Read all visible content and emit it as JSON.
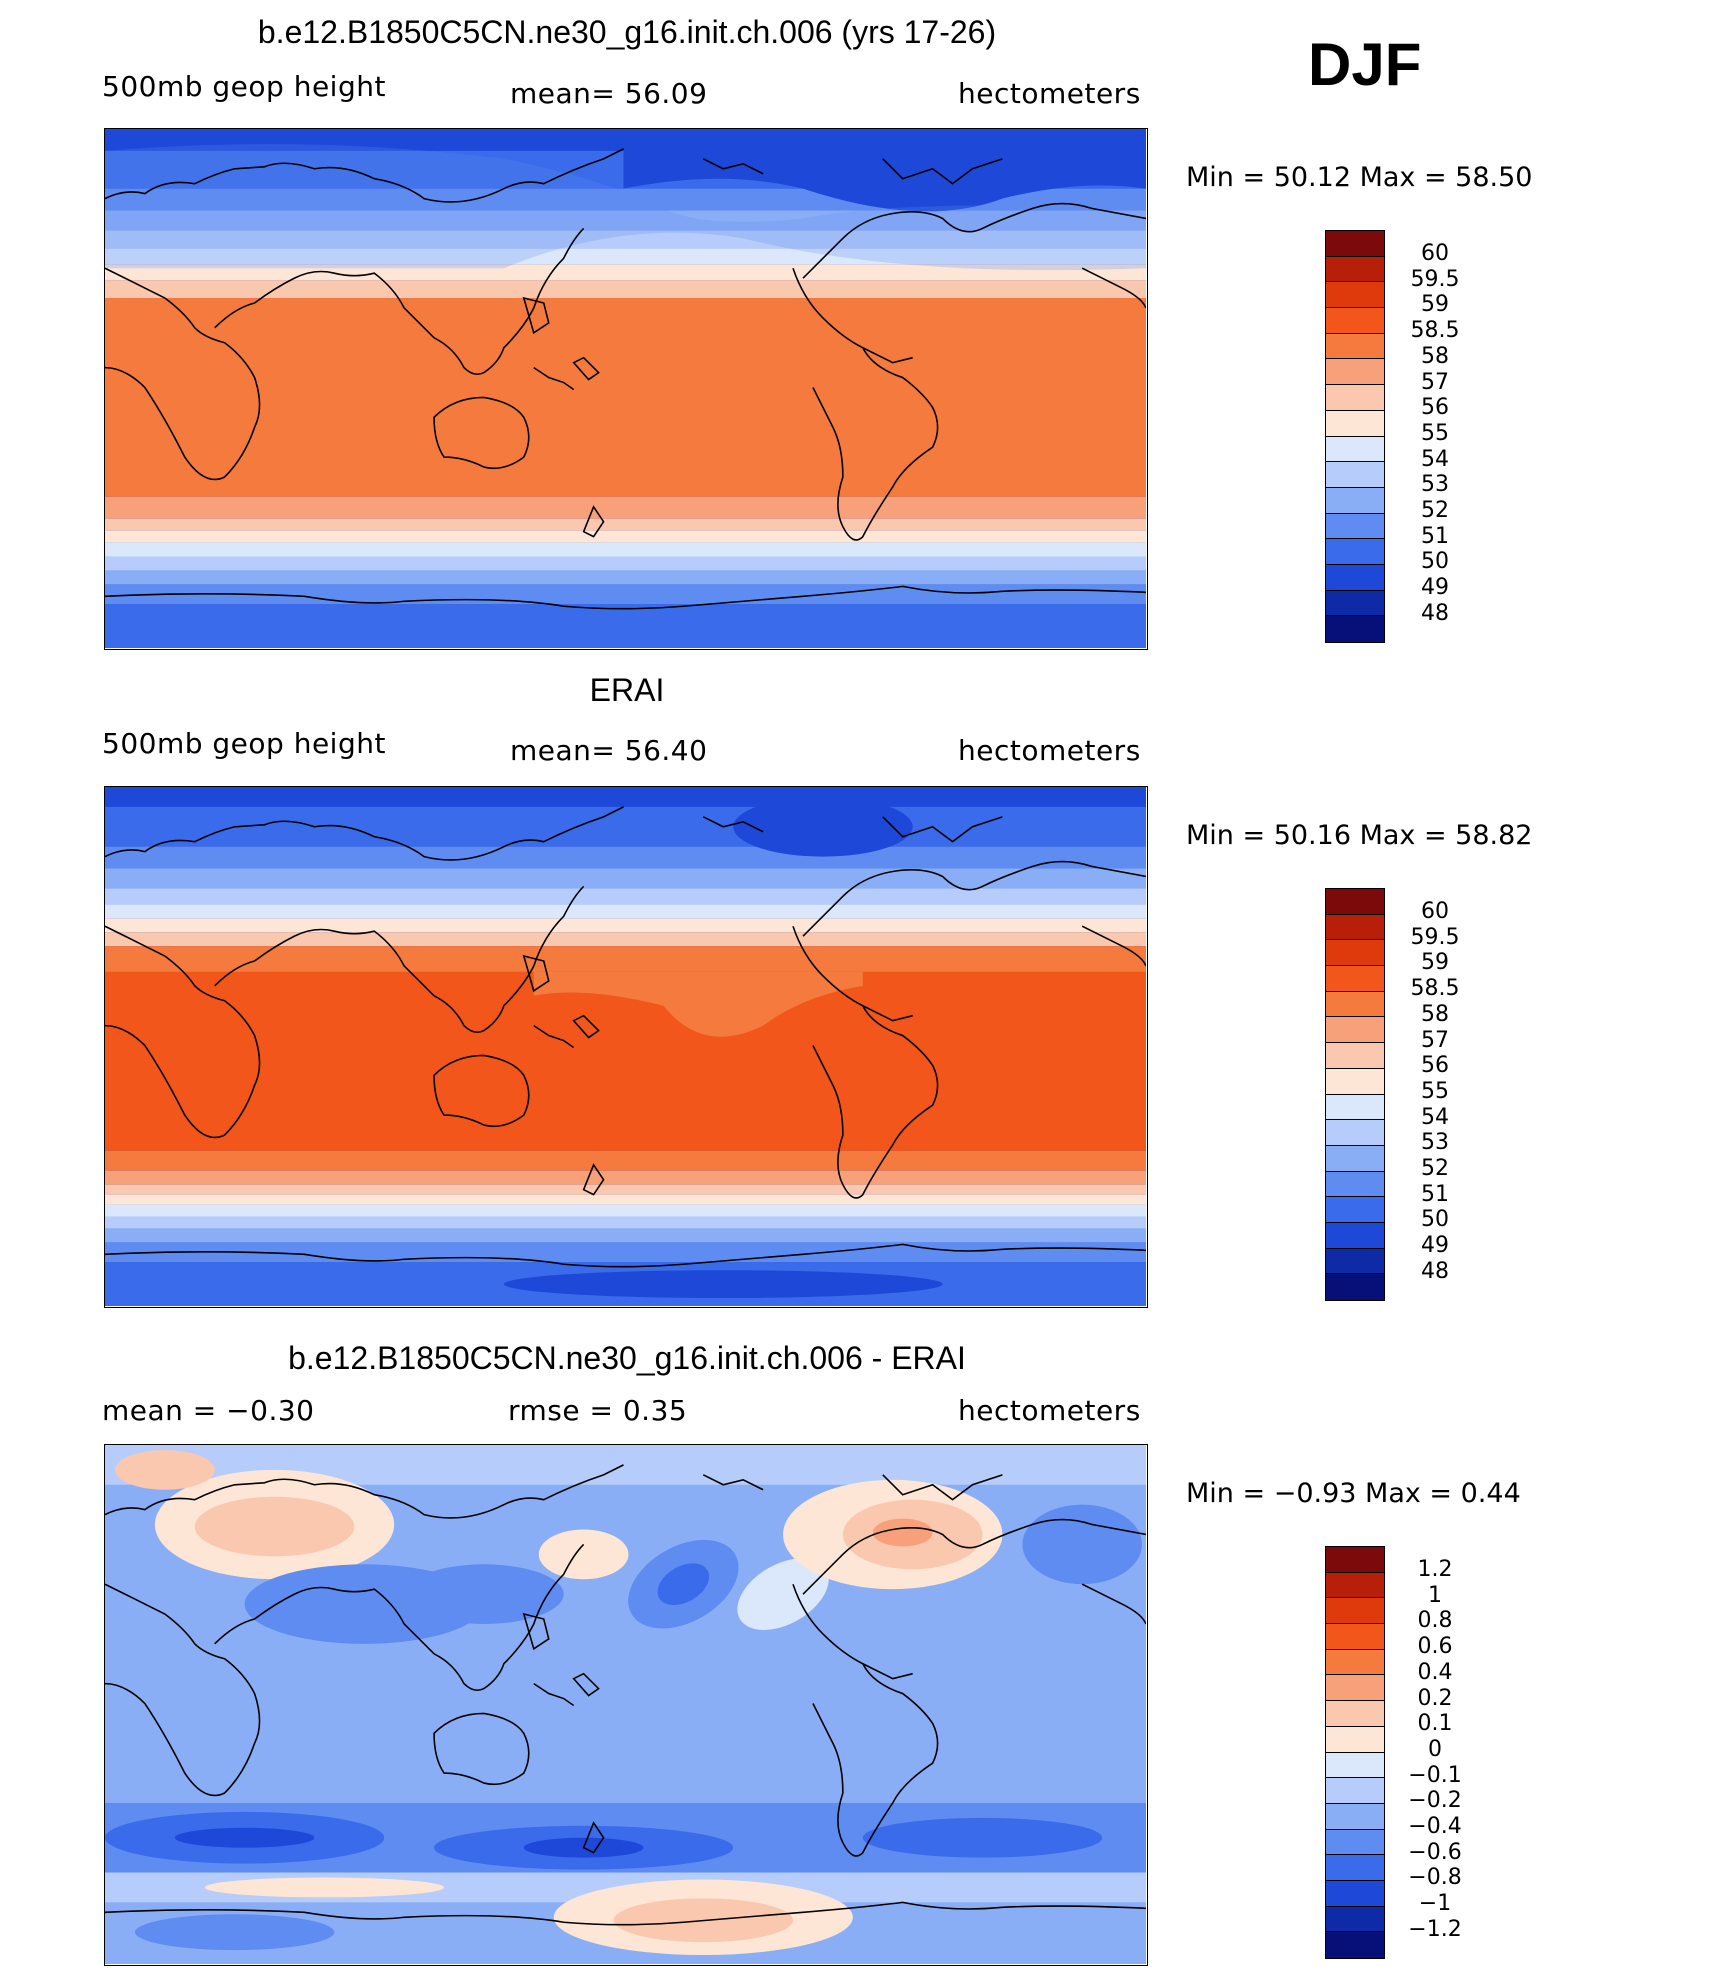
{
  "season": "DJF",
  "panels": [
    {
      "title": "b.e12.B1850C5CN.ne30_g16.init.ch.006 (yrs 17-26)",
      "left_label": "500mb  geop  height",
      "center_label": "mean=   56.09",
      "right_label": "hectometers",
      "minmax": "Min  =    50.12  Max  =    58.50",
      "field": "model"
    },
    {
      "title": "ERAI",
      "left_label": "500mb  geop  height",
      "center_label": "mean=   56.40",
      "right_label": "hectometers",
      "minmax": "Min  =    50.16  Max  =    58.82",
      "field": "obs"
    },
    {
      "title": "b.e12.B1850C5CN.ne30_g16.init.ch.006 - ERAI",
      "left_label": "mean  =    −0.30",
      "center_label": "rmse  =     0.35",
      "right_label": "hectometers",
      "minmax": "Min  =   −0.93  Max  =     0.44",
      "field": "diff"
    }
  ],
  "colorbars": {
    "height": {
      "labels": [
        "60",
        "59.5",
        "59",
        "58.5",
        "58",
        "57",
        "56",
        "55",
        "54",
        "53",
        "52",
        "51",
        "50",
        "49",
        "48"
      ],
      "colors": [
        "#7d0a0a",
        "#b81f08",
        "#de3a0b",
        "#f2561a",
        "#f57a3e",
        "#f7a07a",
        "#fac8ae",
        "#fde6d6",
        "#dbe8fc",
        "#b6ccfa",
        "#8aaef6",
        "#5f8cf1",
        "#3a6bea",
        "#1e48d8",
        "#0f2aa6",
        "#071078"
      ]
    },
    "diff": {
      "labels": [
        "1.2",
        "1",
        "0.8",
        "0.6",
        "0.4",
        "0.2",
        "0.1",
        "0",
        "−0.1",
        "−0.2",
        "−0.4",
        "−0.6",
        "−0.8",
        "−1",
        "−1.2"
      ],
      "colors": [
        "#7d0a0a",
        "#b81f08",
        "#de3a0b",
        "#f2561a",
        "#f57a3e",
        "#f7a07a",
        "#fac8ae",
        "#fde6d6",
        "#dbe8fc",
        "#b6ccfa",
        "#8aaef6",
        "#5f8cf1",
        "#3a6bea",
        "#1e48d8",
        "#0f2aa6",
        "#071078"
      ]
    }
  }
}
